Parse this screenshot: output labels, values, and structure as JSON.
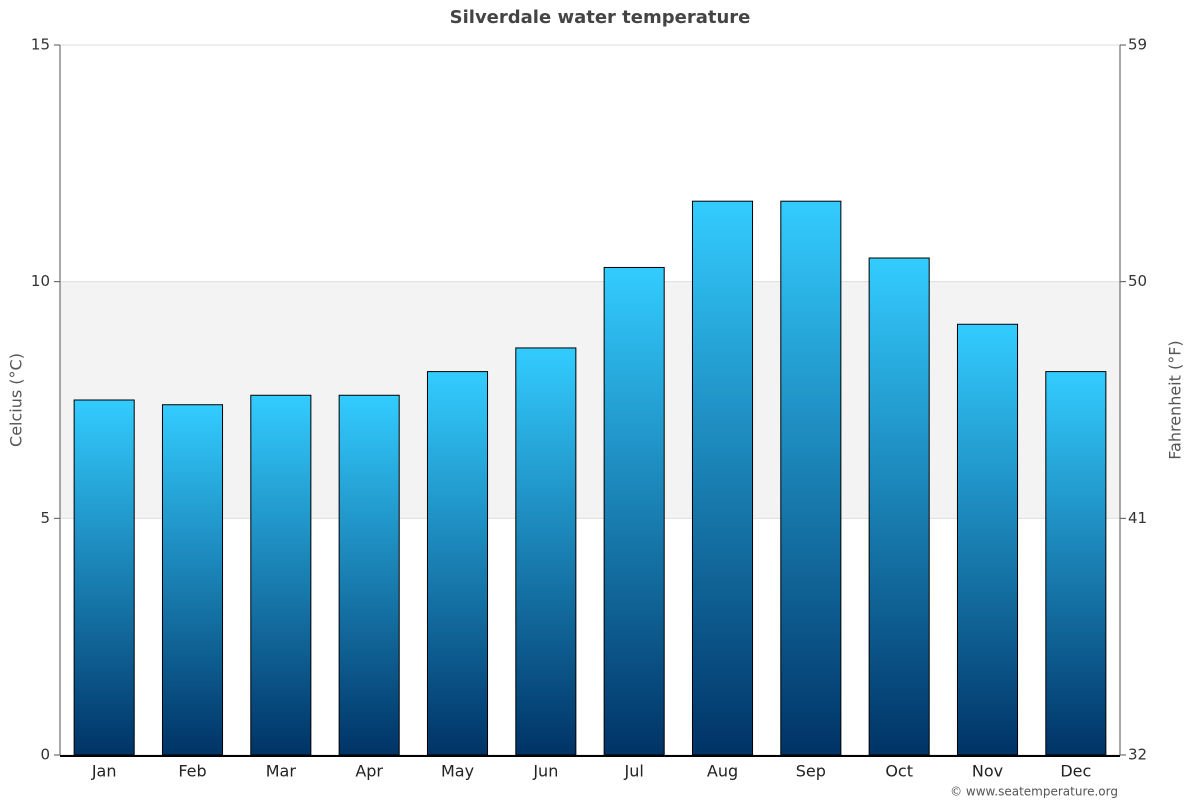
{
  "chart_data": {
    "type": "bar",
    "title": "Silverdale water temperature",
    "y_label": "Celcius (°C)",
    "y2_label": "Fahrenheit (°F)",
    "categories": [
      "Jan",
      "Feb",
      "Mar",
      "Apr",
      "May",
      "Jun",
      "Jul",
      "Aug",
      "Sep",
      "Oct",
      "Nov",
      "Dec"
    ],
    "values": [
      7.5,
      7.4,
      7.6,
      7.6,
      8.1,
      8.6,
      10.3,
      11.7,
      11.7,
      10.5,
      9.1,
      8.1
    ],
    "gradient": [
      "#33ccff",
      "#003366"
    ],
    "ylim": [
      0,
      15
    ],
    "yticks": [
      0,
      5,
      10,
      15
    ],
    "y2lim": [
      32,
      59
    ],
    "y2ticks": [
      32,
      41,
      50,
      59
    ],
    "shaded_band": [
      5,
      10
    ],
    "credit": "© www.seatemperature.org"
  }
}
